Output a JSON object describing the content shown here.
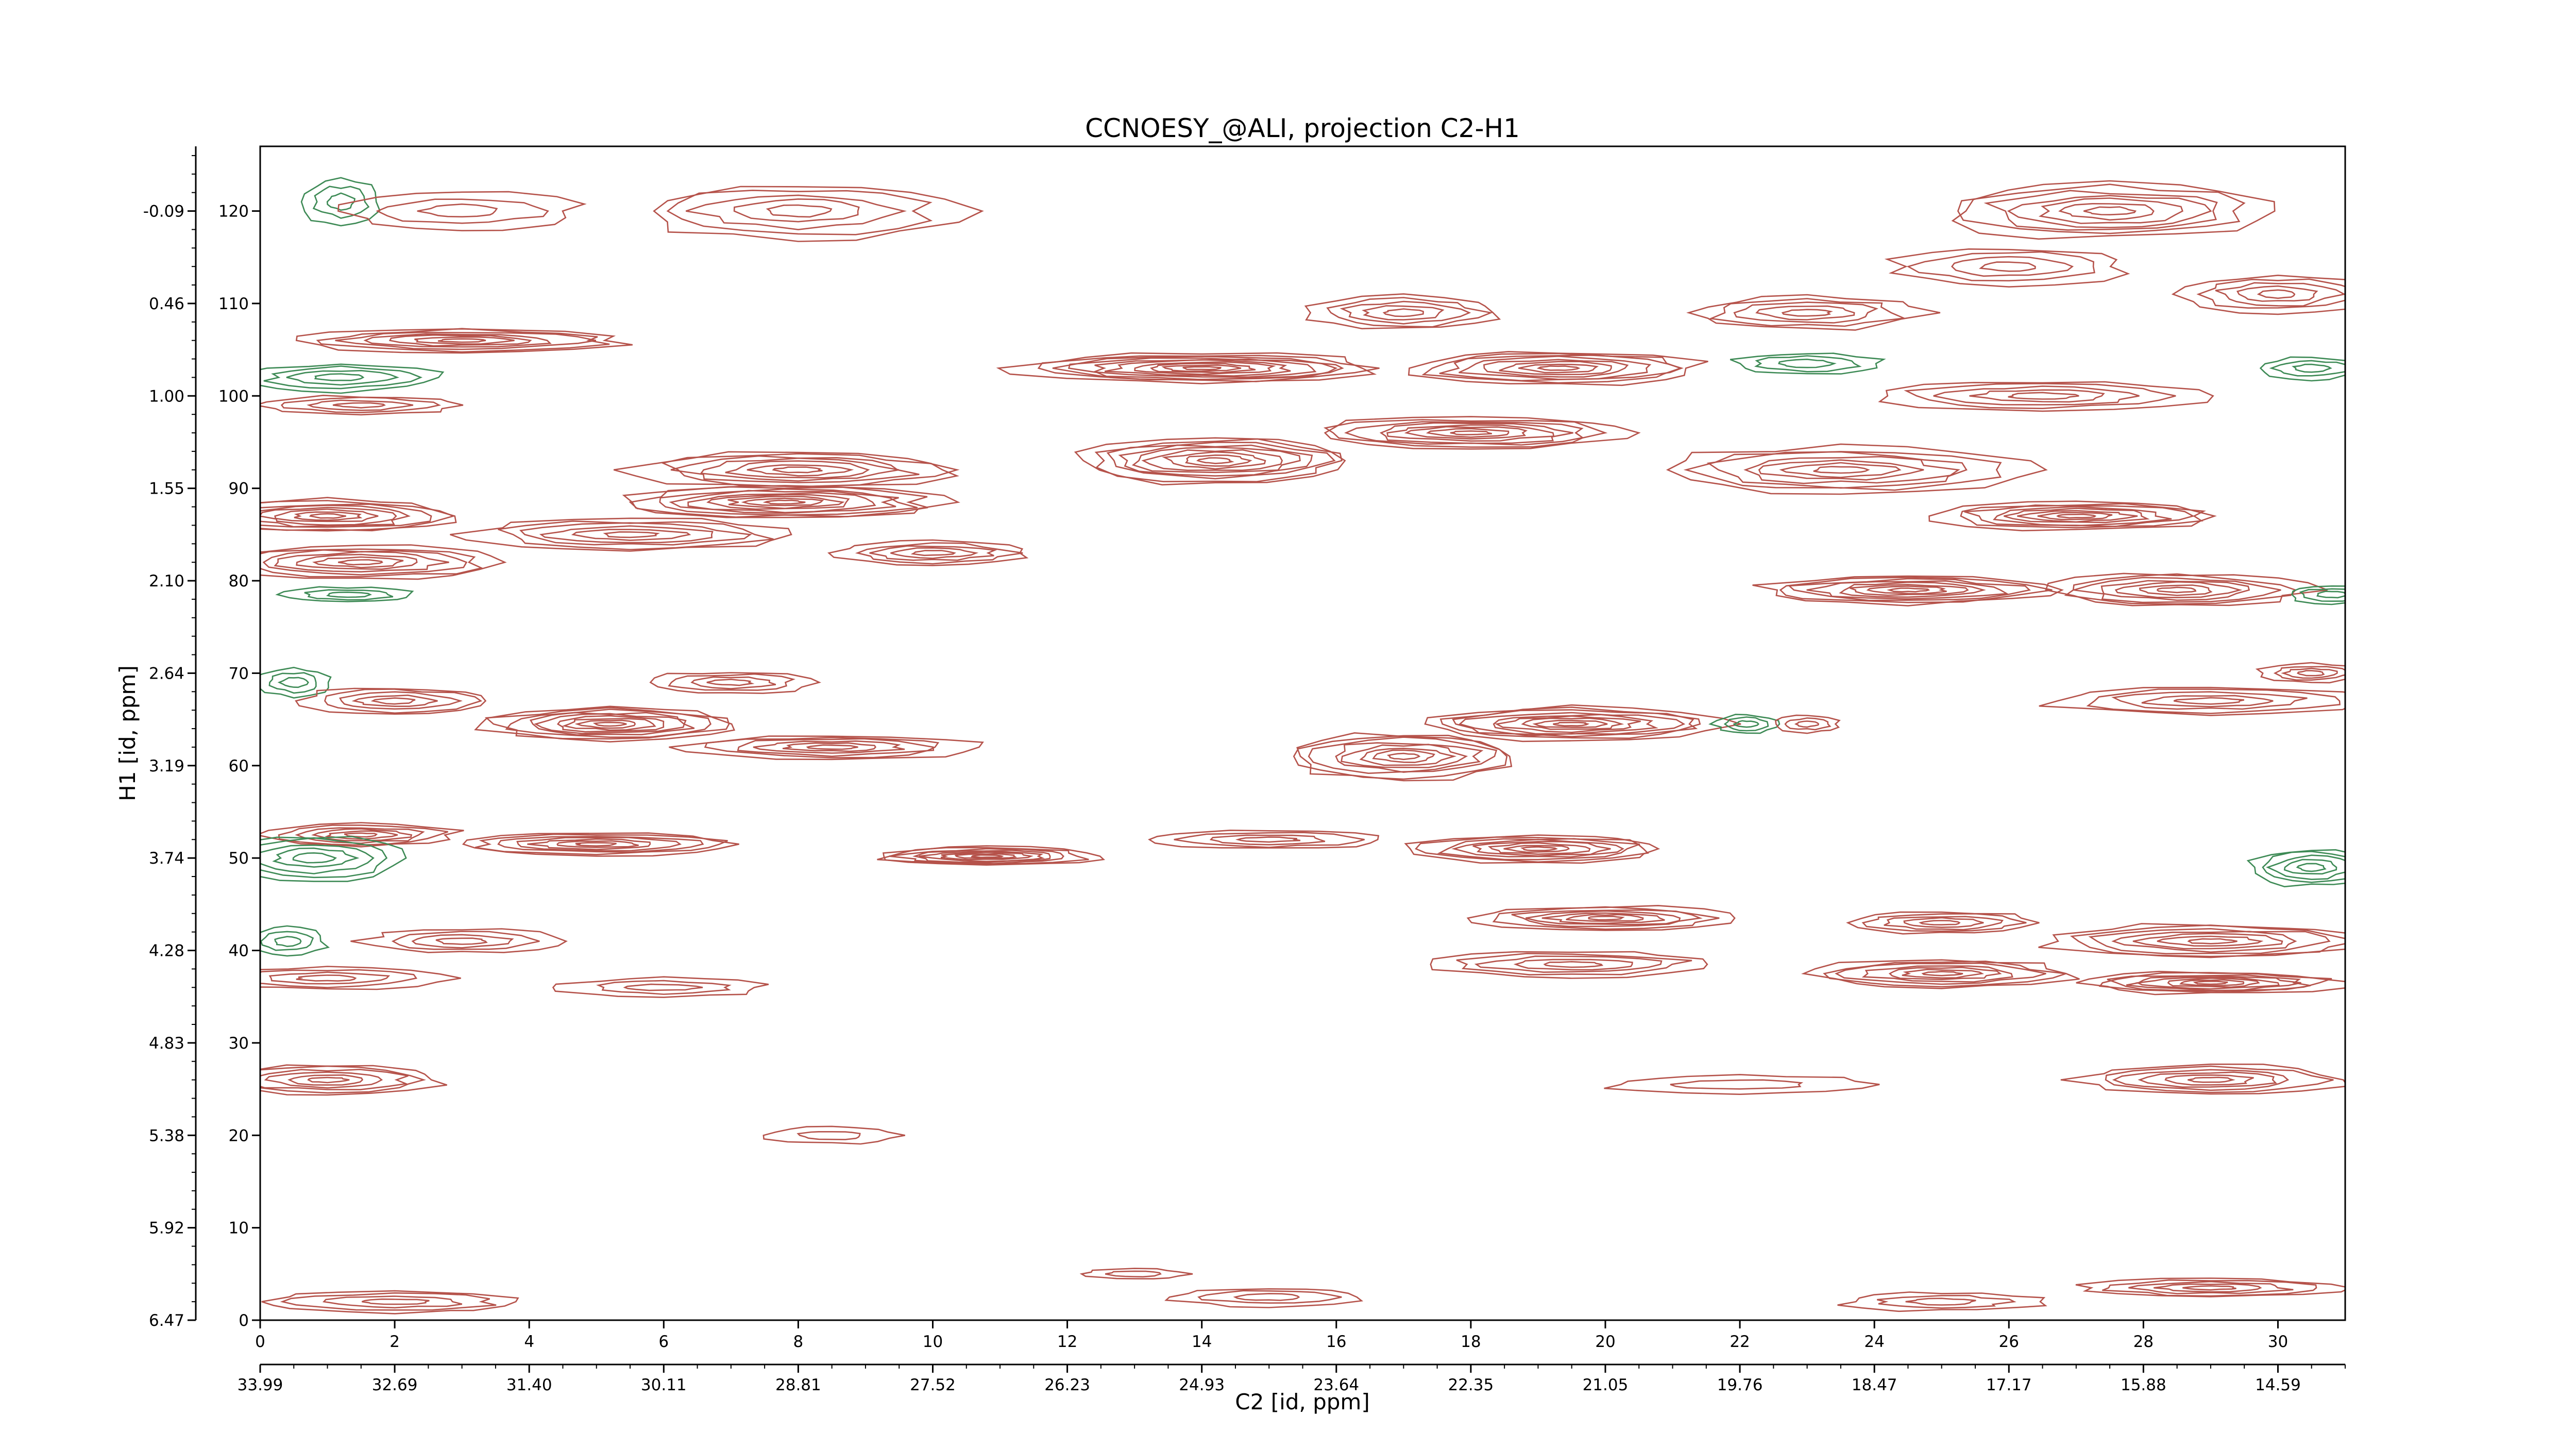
{
  "chart_data": {
    "type": "contour",
    "title": "CCNOESY_@ALI, projection C2-H1",
    "xlabel": "C2 [id, ppm]",
    "ylabel": "H1 [id, ppm]",
    "xlim": [
      0,
      31
    ],
    "ylim": [
      0,
      127
    ],
    "x_index_ticks": [
      "0",
      "2",
      "4",
      "6",
      "8",
      "10",
      "12",
      "14",
      "16",
      "18",
      "20",
      "22",
      "24",
      "26",
      "28",
      "30"
    ],
    "x_ppm_ticks": [
      "33.99",
      "32.69",
      "31.40",
      "30.11",
      "28.81",
      "27.52",
      "26.23",
      "24.93",
      "23.64",
      "22.35",
      "21.05",
      "19.76",
      "18.47",
      "17.17",
      "15.88",
      "14.59"
    ],
    "y_index_ticks": [
      "0",
      "10",
      "20",
      "30",
      "40",
      "50",
      "60",
      "70",
      "80",
      "90",
      "100",
      "110",
      "120"
    ],
    "y_ppm_ticks": [
      "6.47",
      "5.92",
      "5.38",
      "4.83",
      "4.28",
      "3.74",
      "3.19",
      "2.64",
      "2.10",
      "1.55",
      "1.00",
      "0.46",
      "-0.09"
    ],
    "colors": {
      "positive": "#b5524a",
      "negative": "#3d8a55"
    },
    "peaks": [
      {
        "x": 1.2,
        "y": 121,
        "sx": 0.6,
        "sy": 2.5,
        "levels": 3,
        "sign": -1
      },
      {
        "x": 3.0,
        "y": 120,
        "sx": 1.8,
        "sy": 2,
        "levels": 3,
        "sign": 1
      },
      {
        "x": 8.0,
        "y": 120,
        "sx": 2.5,
        "sy": 3,
        "levels": 5,
        "sign": 1
      },
      {
        "x": 27.5,
        "y": 120,
        "sx": 2.5,
        "sy": 3,
        "levels": 7,
        "sign": 1
      },
      {
        "x": 26.0,
        "y": 114,
        "sx": 1.8,
        "sy": 2,
        "levels": 4,
        "sign": 1
      },
      {
        "x": 17.0,
        "y": 109,
        "sx": 1.5,
        "sy": 1.8,
        "levels": 5,
        "sign": 1
      },
      {
        "x": 23.0,
        "y": 109,
        "sx": 1.8,
        "sy": 1.8,
        "levels": 5,
        "sign": 1
      },
      {
        "x": 30.0,
        "y": 111,
        "sx": 1.5,
        "sy": 2,
        "levels": 5,
        "sign": 1
      },
      {
        "x": 3.0,
        "y": 106,
        "sx": 2.5,
        "sy": 1.3,
        "levels": 7,
        "sign": 1
      },
      {
        "x": 14.0,
        "y": 103,
        "sx": 2.8,
        "sy": 1.6,
        "levels": 10,
        "sign": 1
      },
      {
        "x": 19.3,
        "y": 103,
        "sx": 2.3,
        "sy": 1.8,
        "levels": 8,
        "sign": 1
      },
      {
        "x": 23.0,
        "y": 103.5,
        "sx": 1.2,
        "sy": 1.2,
        "levels": 3,
        "sign": -1
      },
      {
        "x": 26.5,
        "y": 100,
        "sx": 2.5,
        "sy": 1.6,
        "levels": 5,
        "sign": 1
      },
      {
        "x": 30.5,
        "y": 103,
        "sx": 0.8,
        "sy": 1.2,
        "levels": 3,
        "sign": -1
      },
      {
        "x": 1.2,
        "y": 102,
        "sx": 1.5,
        "sy": 1.5,
        "levels": 4,
        "sign": -1
      },
      {
        "x": 1.5,
        "y": 99,
        "sx": 1.5,
        "sy": 1.0,
        "levels": 4,
        "sign": 1
      },
      {
        "x": 18.0,
        "y": 96,
        "sx": 2.5,
        "sy": 1.7,
        "levels": 8,
        "sign": 1
      },
      {
        "x": 14.2,
        "y": 93,
        "sx": 2.2,
        "sy": 2.5,
        "levels": 9,
        "sign": 1
      },
      {
        "x": 23.5,
        "y": 92,
        "sx": 2.8,
        "sy": 2.5,
        "levels": 7,
        "sign": 1
      },
      {
        "x": 8.0,
        "y": 92,
        "sx": 2.5,
        "sy": 2,
        "levels": 7,
        "sign": 1
      },
      {
        "x": 7.8,
        "y": 88.5,
        "sx": 2.5,
        "sy": 1.8,
        "levels": 9,
        "sign": 1
      },
      {
        "x": 1.0,
        "y": 87,
        "sx": 2.0,
        "sy": 1.8,
        "levels": 8,
        "sign": 1
      },
      {
        "x": 5.5,
        "y": 85,
        "sx": 2.5,
        "sy": 1.7,
        "levels": 6,
        "sign": 1
      },
      {
        "x": 10.0,
        "y": 83,
        "sx": 1.5,
        "sy": 1.3,
        "levels": 5,
        "sign": 1
      },
      {
        "x": 27.0,
        "y": 87,
        "sx": 2.2,
        "sy": 1.5,
        "levels": 8,
        "sign": 1
      },
      {
        "x": 1.5,
        "y": 82,
        "sx": 2.2,
        "sy": 1.8,
        "levels": 7,
        "sign": 1
      },
      {
        "x": 24.5,
        "y": 79,
        "sx": 2.3,
        "sy": 1.5,
        "levels": 8,
        "sign": 1
      },
      {
        "x": 28.5,
        "y": 79,
        "sx": 2.0,
        "sy": 1.8,
        "levels": 7,
        "sign": 1
      },
      {
        "x": 1.3,
        "y": 78.5,
        "sx": 1.0,
        "sy": 0.8,
        "levels": 3,
        "sign": -1
      },
      {
        "x": 30.8,
        "y": 78.5,
        "sx": 0.7,
        "sy": 1.0,
        "levels": 3,
        "sign": -1
      },
      {
        "x": 0.5,
        "y": 69,
        "sx": 0.6,
        "sy": 1.5,
        "levels": 3,
        "sign": -1
      },
      {
        "x": 7.0,
        "y": 69,
        "sx": 1.3,
        "sy": 1.2,
        "levels": 4,
        "sign": 1
      },
      {
        "x": 2.0,
        "y": 67,
        "sx": 1.5,
        "sy": 1.5,
        "levels": 5,
        "sign": 1
      },
      {
        "x": 5.2,
        "y": 64.5,
        "sx": 2.0,
        "sy": 1.8,
        "levels": 9,
        "sign": 1
      },
      {
        "x": 8.5,
        "y": 62,
        "sx": 2.2,
        "sy": 1.3,
        "levels": 6,
        "sign": 1
      },
      {
        "x": 19.5,
        "y": 64.5,
        "sx": 2.3,
        "sy": 1.8,
        "levels": 9,
        "sign": 1
      },
      {
        "x": 17.0,
        "y": 61,
        "sx": 1.8,
        "sy": 2.5,
        "levels": 8,
        "sign": 1
      },
      {
        "x": 22.1,
        "y": 64.5,
        "sx": 0.5,
        "sy": 1.0,
        "levels": 3,
        "sign": -1
      },
      {
        "x": 23.0,
        "y": 64.5,
        "sx": 0.5,
        "sy": 0.9,
        "levels": 3,
        "sign": 1
      },
      {
        "x": 29.0,
        "y": 67,
        "sx": 2.5,
        "sy": 1.5,
        "levels": 5,
        "sign": 1
      },
      {
        "x": 30.5,
        "y": 70,
        "sx": 0.8,
        "sy": 1.0,
        "levels": 4,
        "sign": 1
      },
      {
        "x": 1.5,
        "y": 52.5,
        "sx": 1.5,
        "sy": 1.2,
        "levels": 6,
        "sign": 1
      },
      {
        "x": 5.0,
        "y": 51.5,
        "sx": 2.2,
        "sy": 1.2,
        "levels": 7,
        "sign": 1
      },
      {
        "x": 0.8,
        "y": 50,
        "sx": 1.5,
        "sy": 2.5,
        "levels": 5,
        "sign": -1
      },
      {
        "x": 10.8,
        "y": 50.2,
        "sx": 1.8,
        "sy": 1.0,
        "levels": 8,
        "sign": 1
      },
      {
        "x": 15.0,
        "y": 52,
        "sx": 1.8,
        "sy": 1.0,
        "levels": 4,
        "sign": 1
      },
      {
        "x": 19.0,
        "y": 51,
        "sx": 2.0,
        "sy": 1.5,
        "levels": 8,
        "sign": 1
      },
      {
        "x": 30.5,
        "y": 49,
        "sx": 1.0,
        "sy": 2.0,
        "levels": 5,
        "sign": -1
      },
      {
        "x": 20.0,
        "y": 43.5,
        "sx": 2.0,
        "sy": 1.3,
        "levels": 7,
        "sign": 1
      },
      {
        "x": 25.0,
        "y": 43,
        "sx": 1.5,
        "sy": 1.2,
        "levels": 5,
        "sign": 1
      },
      {
        "x": 29.0,
        "y": 41,
        "sx": 2.5,
        "sy": 1.8,
        "levels": 7,
        "sign": 1
      },
      {
        "x": 0.4,
        "y": 41,
        "sx": 0.6,
        "sy": 1.5,
        "levels": 3,
        "sign": -1
      },
      {
        "x": 3.0,
        "y": 41,
        "sx": 1.5,
        "sy": 1.3,
        "levels": 4,
        "sign": 1
      },
      {
        "x": 19.5,
        "y": 38.5,
        "sx": 2.2,
        "sy": 1.4,
        "levels": 5,
        "sign": 1
      },
      {
        "x": 25.0,
        "y": 37.5,
        "sx": 2.0,
        "sy": 1.5,
        "levels": 7,
        "sign": 1
      },
      {
        "x": 29.0,
        "y": 36.5,
        "sx": 2.0,
        "sy": 1.2,
        "levels": 8,
        "sign": 1
      },
      {
        "x": 1.0,
        "y": 37,
        "sx": 1.8,
        "sy": 1.2,
        "levels": 4,
        "sign": 1
      },
      {
        "x": 6.0,
        "y": 36,
        "sx": 1.6,
        "sy": 1.0,
        "levels": 3,
        "sign": 1
      },
      {
        "x": 1.0,
        "y": 26,
        "sx": 1.8,
        "sy": 1.6,
        "levels": 6,
        "sign": 1
      },
      {
        "x": 29.0,
        "y": 26,
        "sx": 2.0,
        "sy": 1.6,
        "levels": 6,
        "sign": 1
      },
      {
        "x": 22.0,
        "y": 25.5,
        "sx": 2.0,
        "sy": 1.0,
        "levels": 2,
        "sign": 1
      },
      {
        "x": 8.5,
        "y": 20,
        "sx": 1.0,
        "sy": 0.9,
        "levels": 2,
        "sign": 1
      },
      {
        "x": 29.0,
        "y": 3.5,
        "sx": 2.0,
        "sy": 1.0,
        "levels": 5,
        "sign": 1
      },
      {
        "x": 2.0,
        "y": 2,
        "sx": 2.0,
        "sy": 1.2,
        "levels": 4,
        "sign": 1
      },
      {
        "x": 15.0,
        "y": 2.5,
        "sx": 1.5,
        "sy": 1.0,
        "levels": 3,
        "sign": 1
      },
      {
        "x": 25.0,
        "y": 2.0,
        "sx": 1.5,
        "sy": 1.0,
        "levels": 3,
        "sign": 1
      },
      {
        "x": 13.0,
        "y": 5,
        "sx": 0.8,
        "sy": 0.6,
        "levels": 2,
        "sign": 1
      }
    ]
  }
}
